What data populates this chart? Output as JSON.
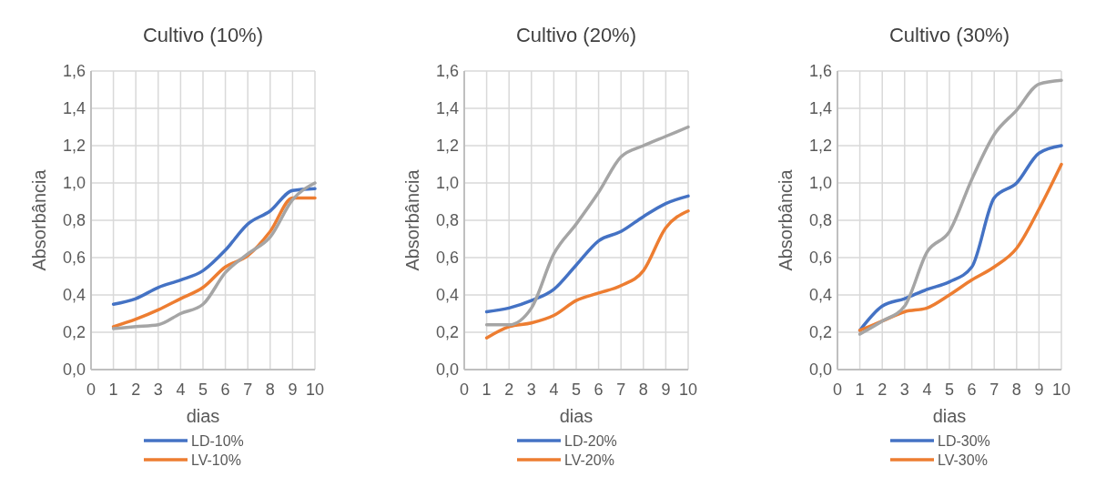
{
  "chart_data": [
    {
      "type": "line",
      "title": "Cultivo (10%)",
      "xlabel": "dias",
      "ylabel": "Absorbância",
      "x": [
        1,
        2,
        3,
        4,
        5,
        6,
        7,
        8,
        9,
        10
      ],
      "xlim": [
        0,
        10
      ],
      "xticks": [
        0,
        1,
        2,
        3,
        4,
        5,
        6,
        7,
        8,
        9,
        10
      ],
      "ylim": [
        0,
        1.6
      ],
      "yticks": [
        {
          "value": 0,
          "label": "0,0"
        },
        {
          "value": 0.2,
          "label": "0,2"
        },
        {
          "value": 0.4,
          "label": "0,4"
        },
        {
          "value": 0.6,
          "label": "0,6"
        },
        {
          "value": 0.8,
          "label": "0,8"
        },
        {
          "value": 1.0,
          "label": "1,0"
        },
        {
          "value": 1.2,
          "label": "1,2"
        },
        {
          "value": 1.4,
          "label": "1,4"
        },
        {
          "value": 1.6,
          "label": "1,6"
        }
      ],
      "grid": true,
      "legend": "bottom",
      "marker": "none",
      "line_style": "solid",
      "series": [
        {
          "name": "LD-10%",
          "color": "#4472c4",
          "values": [
            0.35,
            0.38,
            0.44,
            0.48,
            0.53,
            0.64,
            0.78,
            0.85,
            0.96,
            0.97
          ]
        },
        {
          "name": "LV-10%",
          "color": "#ed7d31",
          "values": [
            0.23,
            0.27,
            0.32,
            0.38,
            0.44,
            0.55,
            0.61,
            0.74,
            0.92,
            0.92
          ]
        },
        {
          "color": "#a5a5a5",
          "values": [
            0.22,
            0.23,
            0.24,
            0.3,
            0.35,
            0.52,
            0.62,
            0.71,
            0.91,
            1.0
          ]
        }
      ]
    },
    {
      "type": "line",
      "title": "Cultivo (20%)",
      "xlabel": "dias",
      "ylabel": "Absorbância",
      "x": [
        1,
        2,
        3,
        4,
        5,
        6,
        7,
        8,
        9,
        10
      ],
      "xlim": [
        0,
        10
      ],
      "xticks": [
        0,
        1,
        2,
        3,
        4,
        5,
        6,
        7,
        8,
        9,
        10
      ],
      "ylim": [
        0,
        1.6
      ],
      "yticks": [
        {
          "value": 0,
          "label": "0,0"
        },
        {
          "value": 0.2,
          "label": "0,2"
        },
        {
          "value": 0.4,
          "label": "0,4"
        },
        {
          "value": 0.6,
          "label": "0,6"
        },
        {
          "value": 0.8,
          "label": "0,8"
        },
        {
          "value": 1.0,
          "label": "1,0"
        },
        {
          "value": 1.2,
          "label": "1,2"
        },
        {
          "value": 1.4,
          "label": "1,4"
        },
        {
          "value": 1.6,
          "label": "1,6"
        }
      ],
      "grid": true,
      "legend": "bottom",
      "marker": "none",
      "line_style": "solid",
      "series": [
        {
          "name": "LD-20%",
          "color": "#4472c4",
          "values": [
            0.31,
            0.33,
            0.37,
            0.43,
            0.56,
            0.69,
            0.74,
            0.82,
            0.89,
            0.93
          ]
        },
        {
          "name": "LV-20%",
          "color": "#ed7d31",
          "values": [
            0.17,
            0.23,
            0.25,
            0.29,
            0.37,
            0.41,
            0.45,
            0.53,
            0.76,
            0.85
          ]
        },
        {
          "color": "#a5a5a5",
          "values": [
            0.24,
            0.24,
            0.33,
            0.62,
            0.78,
            0.95,
            1.14,
            1.2,
            1.25,
            1.3
          ]
        }
      ]
    },
    {
      "type": "line",
      "title": "Cultivo (30%)",
      "xlabel": "dias",
      "ylabel": "Absorbância",
      "x": [
        1,
        2,
        3,
        4,
        5,
        6,
        7,
        8,
        9,
        10
      ],
      "xlim": [
        0,
        10
      ],
      "xticks": [
        0,
        1,
        2,
        3,
        4,
        5,
        6,
        7,
        8,
        9,
        10
      ],
      "ylim": [
        0,
        1.6
      ],
      "yticks": [
        {
          "value": 0,
          "label": "0,0"
        },
        {
          "value": 0.2,
          "label": "0,2"
        },
        {
          "value": 0.4,
          "label": "0,4"
        },
        {
          "value": 0.6,
          "label": "0,6"
        },
        {
          "value": 0.8,
          "label": "0,8"
        },
        {
          "value": 1.0,
          "label": "1,0"
        },
        {
          "value": 1.2,
          "label": "1,2"
        },
        {
          "value": 1.4,
          "label": "1,4"
        },
        {
          "value": 1.6,
          "label": "1,6"
        }
      ],
      "grid": true,
      "legend": "bottom",
      "marker": "none",
      "line_style": "solid",
      "series": [
        {
          "name": "LD-30%",
          "color": "#4472c4",
          "values": [
            0.21,
            0.34,
            0.38,
            0.43,
            0.47,
            0.55,
            0.92,
            1.0,
            1.16,
            1.2
          ]
        },
        {
          "name": "LV-30%",
          "color": "#ed7d31",
          "values": [
            0.21,
            0.26,
            0.31,
            0.33,
            0.4,
            0.48,
            0.55,
            0.65,
            0.86,
            1.1
          ]
        },
        {
          "color": "#a5a5a5",
          "values": [
            0.19,
            0.26,
            0.34,
            0.63,
            0.74,
            1.02,
            1.26,
            1.39,
            1.53,
            1.55
          ]
        }
      ]
    }
  ]
}
